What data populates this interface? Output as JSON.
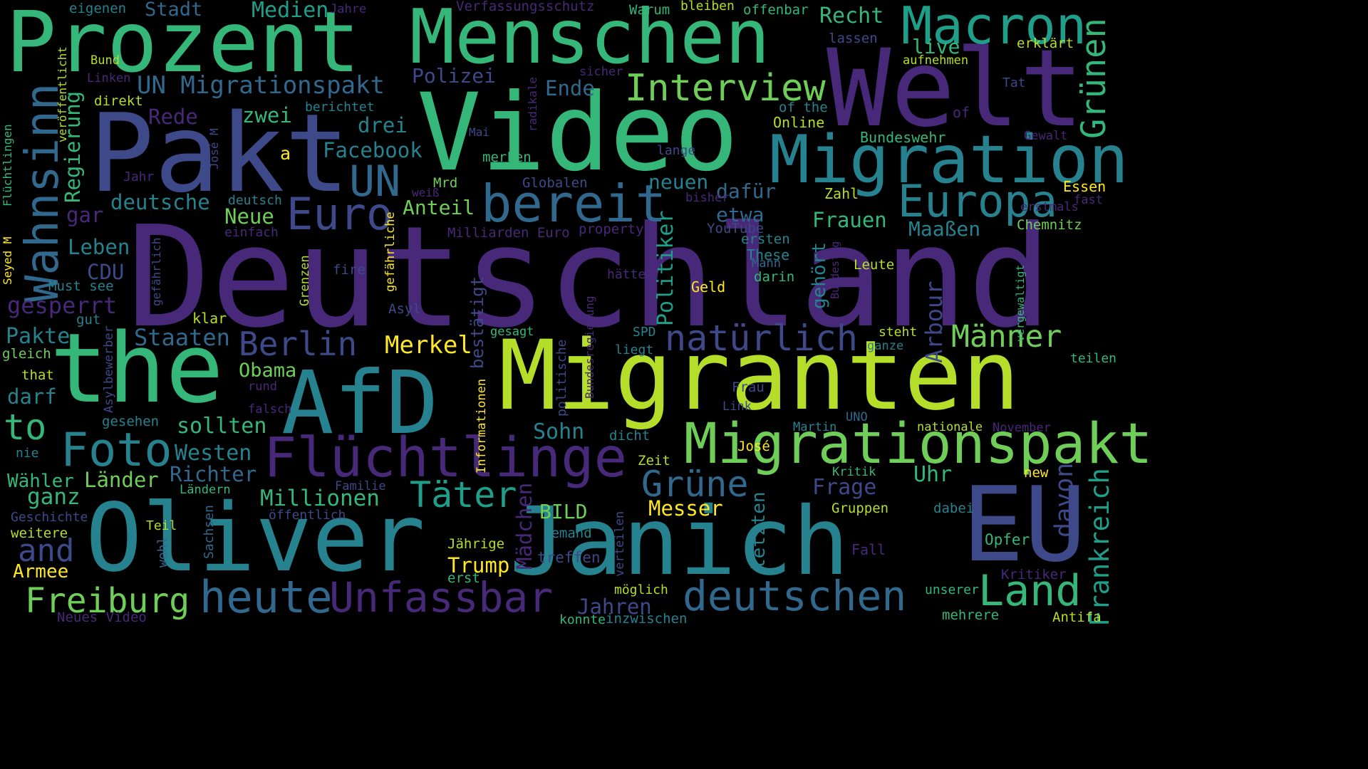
{
  "palette": {
    "background": "#000000",
    "dark_purple": "#440154",
    "purple": "#482878",
    "indigo": "#3e4989",
    "blue": "#31688e",
    "teal": "#26828e",
    "cyan_green": "#1f9e89",
    "green": "#35b779",
    "light_green": "#6ece58",
    "lime": "#b5de2b",
    "yellow": "#fde725"
  },
  "words": [
    {
      "text": "Deutschland",
      "color": "#482878"
    },
    {
      "text": "Prozent",
      "color": "#35b779"
    },
    {
      "text": "Menschen",
      "color": "#35b779"
    },
    {
      "text": "Video",
      "color": "#35b779"
    },
    {
      "text": "Welt",
      "color": "#482878"
    },
    {
      "text": "Pakt",
      "color": "#3e4989"
    },
    {
      "text": "Migranten",
      "color": "#b5de2b"
    },
    {
      "text": "the",
      "color": "#35b779"
    },
    {
      "text": "AfD",
      "color": "#26828e"
    },
    {
      "text": "Oliver",
      "color": "#26828e"
    },
    {
      "text": "Janich",
      "color": "#26828e"
    },
    {
      "text": "EU",
      "color": "#3e4989"
    },
    {
      "text": "Migration",
      "color": "#26828e"
    },
    {
      "text": "Macron",
      "color": "#1f9e89"
    },
    {
      "text": "Migrationspakt",
      "color": "#6ece58"
    },
    {
      "text": "Flüchtlinge",
      "color": "#482878"
    },
    {
      "text": "bereit",
      "color": "#31688e"
    },
    {
      "text": "Europa",
      "color": "#26828e"
    },
    {
      "text": "Interview",
      "color": "#6ece58"
    },
    {
      "text": "Wahnsinn",
      "color": "#31688e"
    },
    {
      "text": "Foto",
      "color": "#26828e"
    },
    {
      "text": "UN",
      "color": "#31688e"
    },
    {
      "text": "Euro",
      "color": "#3e4989"
    },
    {
      "text": "heute",
      "color": "#31688e"
    },
    {
      "text": "Unfassbar",
      "color": "#482878"
    },
    {
      "text": "deutschen",
      "color": "#31688e"
    },
    {
      "text": "Land",
      "color": "#35b779"
    },
    {
      "text": "Freiburg",
      "color": "#6ece58"
    },
    {
      "text": "Täter",
      "color": "#1f9e89"
    },
    {
      "text": "Grüne",
      "color": "#31688e"
    },
    {
      "text": "natürlich",
      "color": "#3e4989"
    },
    {
      "text": "Männer",
      "color": "#6ece58"
    },
    {
      "text": "Grünen",
      "color": "#35b779"
    },
    {
      "text": "Berlin",
      "color": "#3e4989"
    },
    {
      "text": "UN Migrationspakt",
      "color": "#31688e"
    },
    {
      "text": "Frankreich",
      "color": "#1f9e89"
    },
    {
      "text": "Arbour",
      "color": "#3e4989"
    },
    {
      "text": "davon",
      "color": "#3e4989"
    },
    {
      "text": "Politiker",
      "color": "#1f9e89"
    },
    {
      "text": "Regierung",
      "color": "#35b779"
    },
    {
      "text": "to",
      "color": "#35b779"
    },
    {
      "text": "and",
      "color": "#3e4989"
    },
    {
      "text": "Medien",
      "color": "#1f9e89"
    },
    {
      "text": "Stadt",
      "color": "#31688e"
    },
    {
      "text": "Recht",
      "color": "#35b779"
    },
    {
      "text": "Polizei",
      "color": "#3e4989"
    },
    {
      "text": "Ende",
      "color": "#31688e"
    },
    {
      "text": "Facebook",
      "color": "#26828e"
    },
    {
      "text": "drei",
      "color": "#26828e"
    },
    {
      "text": "zwei",
      "color": "#35b779"
    },
    {
      "text": "Rede",
      "color": "#482878"
    },
    {
      "text": "neuen",
      "color": "#26828e"
    },
    {
      "text": "dafür",
      "color": "#31688e"
    },
    {
      "text": "etwa",
      "color": "#31688e"
    },
    {
      "text": "Frauen",
      "color": "#35b779"
    },
    {
      "text": "Maaßen",
      "color": "#26828e"
    },
    {
      "text": "Anteil",
      "color": "#6ece58"
    },
    {
      "text": "deutsche",
      "color": "#26828e"
    },
    {
      "text": "Neue",
      "color": "#6ece58"
    },
    {
      "text": "Leben",
      "color": "#26828e"
    },
    {
      "text": "CDU",
      "color": "#3e4989"
    },
    {
      "text": "gesperrt",
      "color": "#482878"
    },
    {
      "text": "Pakte",
      "color": "#26828e"
    },
    {
      "text": "Staaten",
      "color": "#31688e"
    },
    {
      "text": "Merkel",
      "color": "#fde725"
    },
    {
      "text": "bestätigt",
      "color": "#3e4989"
    },
    {
      "text": "Obama",
      "color": "#6ece58"
    },
    {
      "text": "sollten",
      "color": "#35b779"
    },
    {
      "text": "Sohn",
      "color": "#26828e"
    },
    {
      "text": "Westen",
      "color": "#26828e"
    },
    {
      "text": "Richter",
      "color": "#31688e"
    },
    {
      "text": "Länder",
      "color": "#6ece58"
    },
    {
      "text": "ganz",
      "color": "#35b779"
    },
    {
      "text": "Millionen",
      "color": "#35b779"
    },
    {
      "text": "Frage",
      "color": "#3e4989"
    },
    {
      "text": "Uhr",
      "color": "#35b779"
    },
    {
      "text": "Messer",
      "color": "#fde725"
    },
    {
      "text": "BILD",
      "color": "#6ece58"
    },
    {
      "text": "Mädchen",
      "color": "#482878"
    },
    {
      "text": "letzten",
      "color": "#26828e"
    },
    {
      "text": "gehört",
      "color": "#26828e"
    },
    {
      "text": "Trump",
      "color": "#fde725"
    },
    {
      "text": "Jahren",
      "color": "#3e4989"
    },
    {
      "text": "darf",
      "color": "#26828e"
    },
    {
      "text": "Wähler",
      "color": "#35b779"
    },
    {
      "text": "Armee",
      "color": "#fde725"
    },
    {
      "text": "a",
      "color": "#fde725"
    },
    {
      "text": "gar",
      "color": "#482878"
    },
    {
      "text": "live",
      "color": "#35b779"
    },
    {
      "text": "Essen",
      "color": "#fde725"
    },
    {
      "text": "Chemnitz",
      "color": "#6ece58"
    },
    {
      "text": "Bundeswehr",
      "color": "#35b779"
    },
    {
      "text": "Online",
      "color": "#b5de2b"
    },
    {
      "text": "of the",
      "color": "#26828e"
    },
    {
      "text": "Geld",
      "color": "#fde725"
    },
    {
      "text": "Leute",
      "color": "#b5de2b"
    },
    {
      "text": "These",
      "color": "#26828e"
    },
    {
      "text": "Zahl",
      "color": "#b5de2b"
    },
    {
      "text": "ersten",
      "color": "#26828e"
    },
    {
      "text": "Mann",
      "color": "#31688e"
    },
    {
      "text": "darin",
      "color": "#35b779"
    },
    {
      "text": "YouTube",
      "color": "#3e4989"
    },
    {
      "text": "Opfer",
      "color": "#35b779"
    },
    {
      "text": "Fall",
      "color": "#482878"
    },
    {
      "text": "Gruppen",
      "color": "#b5de2b"
    },
    {
      "text": "dabei",
      "color": "#26828e"
    },
    {
      "text": "Kritiker",
      "color": "#482878"
    },
    {
      "text": "unserer",
      "color": "#35b779"
    },
    {
      "text": "mehrere",
      "color": "#35b779"
    },
    {
      "text": "Antifa",
      "color": "#b5de2b"
    },
    {
      "text": "Kritik",
      "color": "#35b779"
    },
    {
      "text": "new",
      "color": "#fde725"
    },
    {
      "text": "nationale",
      "color": "#b5de2b"
    },
    {
      "text": "November",
      "color": "#482878"
    },
    {
      "text": "José",
      "color": "#fde725"
    },
    {
      "text": "Martin",
      "color": "#26828e"
    },
    {
      "text": "UNO",
      "color": "#31688e"
    },
    {
      "text": "Frau",
      "color": "#3e4989"
    },
    {
      "text": "Link",
      "color": "#3e4989"
    },
    {
      "text": "Zeit",
      "color": "#b5de2b"
    },
    {
      "text": "dicht",
      "color": "#26828e"
    },
    {
      "text": "teilen",
      "color": "#35b779"
    },
    {
      "text": "ganze",
      "color": "#26828e"
    },
    {
      "text": "steht",
      "color": "#b5de2b"
    },
    {
      "text": "SPD",
      "color": "#26828e"
    },
    {
      "text": "liegt",
      "color": "#26828e"
    },
    {
      "text": "gesagt",
      "color": "#35b779"
    },
    {
      "text": "hätte",
      "color": "#482878"
    },
    {
      "text": "Asyl",
      "color": "#3e4989"
    },
    {
      "text": "fire",
      "color": "#3e4989"
    },
    {
      "text": "klar",
      "color": "#b5de2b"
    },
    {
      "text": "gut",
      "color": "#26828e"
    },
    {
      "text": "gleich",
      "color": "#6ece58"
    },
    {
      "text": "that",
      "color": "#b5de2b"
    },
    {
      "text": "Must see",
      "color": "#26828e"
    },
    {
      "text": "einfach",
      "color": "#482878"
    },
    {
      "text": "deutsch",
      "color": "#26828e"
    },
    {
      "text": "Mrd",
      "color": "#6ece58"
    },
    {
      "text": "weiß",
      "color": "#482878"
    },
    {
      "text": "Globalen",
      "color": "#3e4989"
    },
    {
      "text": "Milliarden Euro",
      "color": "#482878"
    },
    {
      "text": "property",
      "color": "#482878"
    },
    {
      "text": "merken",
      "color": "#35b779"
    },
    {
      "text": "Mai",
      "color": "#3e4989"
    },
    {
      "text": "Jahr",
      "color": "#482878"
    },
    {
      "text": "lange",
      "color": "#3e4989"
    },
    {
      "text": "bisher",
      "color": "#482878"
    },
    {
      "text": "erstmals",
      "color": "#482878"
    },
    {
      "text": "fast",
      "color": "#482878"
    },
    {
      "text": "Gewalt",
      "color": "#482878"
    },
    {
      "text": "Tat",
      "color": "#3e4989"
    },
    {
      "text": "of",
      "color": "#482878"
    },
    {
      "text": "aufnehmen",
      "color": "#b5de2b"
    },
    {
      "text": "erklärt",
      "color": "#b5de2b"
    },
    {
      "text": "lassen",
      "color": "#3e4989"
    },
    {
      "text": "bleiben",
      "color": "#b5de2b"
    },
    {
      "text": "offenbar",
      "color": "#35b779"
    },
    {
      "text": "Warum",
      "color": "#35b779"
    },
    {
      "text": "Verfassungsschutz",
      "color": "#482878"
    },
    {
      "text": "Jahre",
      "color": "#482878"
    },
    {
      "text": "eigenen",
      "color": "#26828e"
    },
    {
      "text": "Bund",
      "color": "#b5de2b"
    },
    {
      "text": "Linken",
      "color": "#482878"
    },
    {
      "text": "direkt",
      "color": "#b5de2b"
    },
    {
      "text": "berichtet",
      "color": "#26828e"
    },
    {
      "text": "sicher",
      "color": "#482878"
    },
    {
      "text": "rund",
      "color": "#482878"
    },
    {
      "text": "falsch",
      "color": "#482878"
    },
    {
      "text": "gesehen",
      "color": "#26828e"
    },
    {
      "text": "nie",
      "color": "#26828e"
    },
    {
      "text": "Geschichte",
      "color": "#3e4989"
    },
    {
      "text": "weitere",
      "color": "#b5de2b"
    },
    {
      "text": "Teil",
      "color": "#b5de2b"
    },
    {
      "text": "Ländern",
      "color": "#35b779"
    },
    {
      "text": "öffentlich",
      "color": "#3e4989"
    },
    {
      "text": "Familie",
      "color": "#3e4989"
    },
    {
      "text": "Jährige",
      "color": "#b5de2b"
    },
    {
      "text": "erst",
      "color": "#35b779"
    },
    {
      "text": "jemand",
      "color": "#26828e"
    },
    {
      "text": "treffen",
      "color": "#3e4989"
    },
    {
      "text": "möglich",
      "color": "#b5de2b"
    },
    {
      "text": "Neues Video",
      "color": "#482878"
    },
    {
      "text": "konnte",
      "color": "#35b779"
    },
    {
      "text": "inzwischen",
      "color": "#26828e"
    },
    {
      "text": "verteilen",
      "color": "#3e4989"
    },
    {
      "text": "Seyed M",
      "color": "#fde725"
    },
    {
      "text": "Flüchtlingen",
      "color": "#35b779"
    },
    {
      "text": "veröffentlicht",
      "color": "#b5de2b"
    },
    {
      "text": "José M",
      "color": "#3e4989"
    },
    {
      "text": "radikale",
      "color": "#482878"
    },
    {
      "text": "gefährlich",
      "color": "#3e4989"
    },
    {
      "text": "Grenzen",
      "color": "#b5de2b"
    },
    {
      "text": "gefährliche",
      "color": "#fde725"
    },
    {
      "text": "Asylbewerber",
      "color": "#3e4989"
    },
    {
      "text": "Informationen",
      "color": "#fde725"
    },
    {
      "text": "politische",
      "color": "#3e4989"
    },
    {
      "text": "Bundesregierung",
      "color": "#482878"
    },
    {
      "text": "wohl",
      "color": "#31688e"
    },
    {
      "text": "Sachsen",
      "color": "#31688e"
    },
    {
      "text": "Bundestag",
      "color": "#482878"
    },
    {
      "text": "vergewaltigt",
      "color": "#35b779"
    }
  ]
}
